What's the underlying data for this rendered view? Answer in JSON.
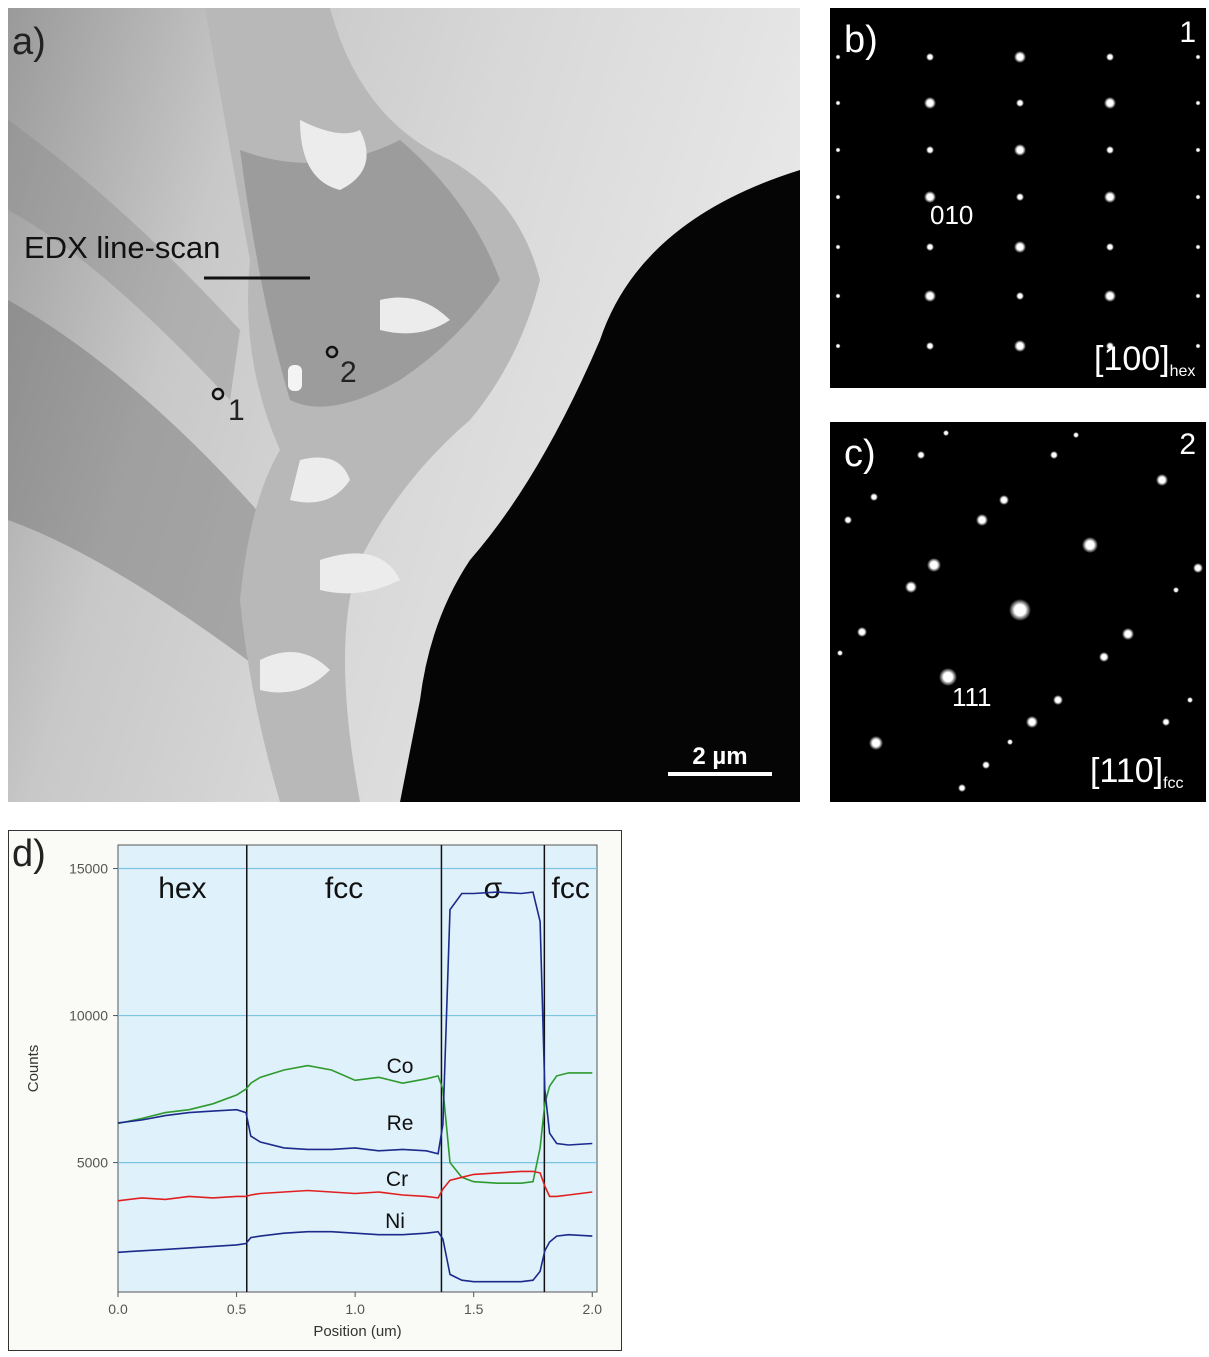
{
  "panels": {
    "a": {
      "label": "a)",
      "scan_label": "EDX line-scan",
      "point1": "1",
      "point2": "2",
      "scale_bar": "2 µm"
    },
    "b": {
      "label": "b)",
      "number": "1",
      "spot_label": "010",
      "zone": "[100]",
      "zone_sub": "hex"
    },
    "c": {
      "label": "c)",
      "number": "2",
      "spot_label": "111",
      "zone": "[110]",
      "zone_sub": "fcc"
    }
  },
  "chart_data": {
    "type": "line",
    "panel_label": "d)",
    "x_label": "Position (um)",
    "y_label": "Counts",
    "x": [
      0,
      0.1,
      0.2,
      0.3,
      0.4,
      0.5,
      0.54,
      0.56,
      0.6,
      0.7,
      0.8,
      0.9,
      1.0,
      1.1,
      1.2,
      1.3,
      1.35,
      1.37,
      1.4,
      1.45,
      1.5,
      1.6,
      1.7,
      1.75,
      1.78,
      1.8,
      1.82,
      1.85,
      1.9,
      2.0
    ],
    "series": [
      {
        "name": "Co",
        "color": "#2e9a2e",
        "values": [
          6330,
          6500,
          6700,
          6800,
          7000,
          7300,
          7500,
          7700,
          7900,
          8150,
          8300,
          8150,
          7800,
          7900,
          7700,
          7850,
          7950,
          7500,
          5000,
          4500,
          4350,
          4300,
          4300,
          4350,
          5500,
          7000,
          7600,
          7950,
          8050,
          8050
        ]
      },
      {
        "name": "Re",
        "color": "#1c2a8c",
        "values": [
          6350,
          6450,
          6600,
          6700,
          6750,
          6800,
          6700,
          5900,
          5700,
          5500,
          5450,
          5450,
          5500,
          5400,
          5450,
          5400,
          5300,
          6300,
          13600,
          14150,
          14150,
          14200,
          14150,
          14200,
          13200,
          7500,
          6000,
          5650,
          5600,
          5650
        ]
      },
      {
        "name": "Cr",
        "color": "#e02020",
        "values": [
          3700,
          3800,
          3750,
          3850,
          3800,
          3850,
          3850,
          3900,
          3950,
          4000,
          4050,
          4000,
          3950,
          4000,
          3900,
          3850,
          3800,
          4100,
          4400,
          4500,
          4600,
          4650,
          4700,
          4700,
          4650,
          4200,
          3850,
          3850,
          3900,
          4000
        ]
      },
      {
        "name": "Ni",
        "color": "#1c2a8c",
        "values": [
          1950,
          2000,
          2050,
          2100,
          2150,
          2200,
          2250,
          2450,
          2500,
          2600,
          2650,
          2650,
          2600,
          2550,
          2550,
          2600,
          2650,
          2400,
          1200,
          1000,
          950,
          950,
          950,
          1000,
          1300,
          2000,
          2300,
          2500,
          2550,
          2500
        ]
      }
    ],
    "phase_boundaries": [
      0.543,
      1.364,
      1.798
    ],
    "phase_labels": [
      "hex",
      "fcc",
      "σ",
      "fcc"
    ],
    "xlim": [
      0,
      2.02
    ],
    "ylim": [
      600,
      15800
    ],
    "xticks": [
      {
        "value": 0,
        "label": "0.0"
      },
      0.5,
      {
        "value": 1,
        "label": "1.0"
      },
      1.5,
      {
        "value": 2,
        "label": "2.0"
      }
    ],
    "yticks": [
      5000,
      10000,
      15000
    ],
    "grid": true
  }
}
